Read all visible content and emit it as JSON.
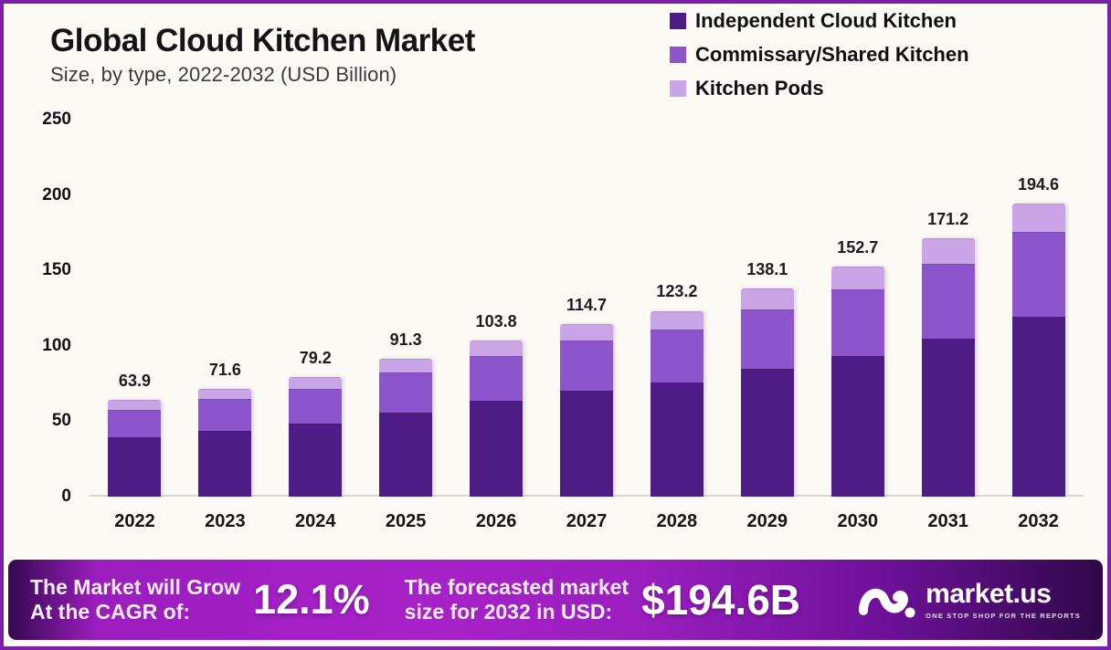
{
  "header": {
    "title": "Global Cloud Kitchen Market",
    "subtitle": "Size, by type, 2022-2032 (USD Billion)"
  },
  "legend": [
    {
      "label": "Independent Cloud Kitchen",
      "color": "#4E1C85"
    },
    {
      "label": "Commissary/Shared Kitchen",
      "color": "#8C55CB"
    },
    {
      "label": "Kitchen Pods",
      "color": "#C9A4E7"
    }
  ],
  "chart_data": {
    "type": "bar",
    "stacked": true,
    "title": "Global Cloud Kitchen Market Size, by type, 2022-2032 (USD Billion)",
    "unit": "USD Billion",
    "categories": [
      "2022",
      "2023",
      "2024",
      "2025",
      "2026",
      "2027",
      "2028",
      "2029",
      "2030",
      "2031",
      "2032"
    ],
    "totals": [
      63.9,
      71.6,
      79.2,
      91.3,
      103.8,
      114.7,
      123.2,
      138.1,
      152.7,
      171.2,
      194.6
    ],
    "series": [
      {
        "name": "Independent Cloud Kitchen",
        "color": "#4E1C85",
        "values": [
          39.1,
          43.8,
          48.5,
          55.9,
          63.5,
          70.2,
          75.4,
          84.5,
          93.5,
          104.8,
          119.1
        ]
      },
      {
        "name": "Commissary/Shared Kitchen",
        "color": "#8C55CB",
        "values": [
          18.5,
          20.7,
          22.9,
          26.4,
          30.0,
          33.2,
          35.6,
          39.9,
          44.1,
          49.5,
          56.2
        ]
      },
      {
        "name": "Kitchen Pods",
        "color": "#C9A4E7",
        "values": [
          6.3,
          7.1,
          7.8,
          9.0,
          10.3,
          11.3,
          12.2,
          13.7,
          15.1,
          16.9,
          19.3
        ]
      }
    ],
    "segment_values_estimated_from_pixels": true,
    "y_ticks": [
      0,
      50,
      100,
      150,
      200,
      250
    ],
    "ylim": [
      0,
      250
    ],
    "grid": false,
    "legend_position": "top-right",
    "value_labels": "totals shown above each bar"
  },
  "banner": {
    "left_line1": "The Market will Grow",
    "left_line2": "At the CAGR of:",
    "cagr": "12.1%",
    "right_line1": "The forecasted market",
    "right_line2": "size for 2032 in USD:",
    "forecast": "$194.6B",
    "logo_text": "market.us",
    "logo_tagline": "ONE STOP SHOP FOR THE REPORTS"
  },
  "colors": {
    "page_border": "#7A1FA6",
    "page_background": "#FCFAF5",
    "banner_bright": "#A722C8",
    "banner_dark": "#2F0849",
    "axis_line": "#D8D8D8"
  }
}
